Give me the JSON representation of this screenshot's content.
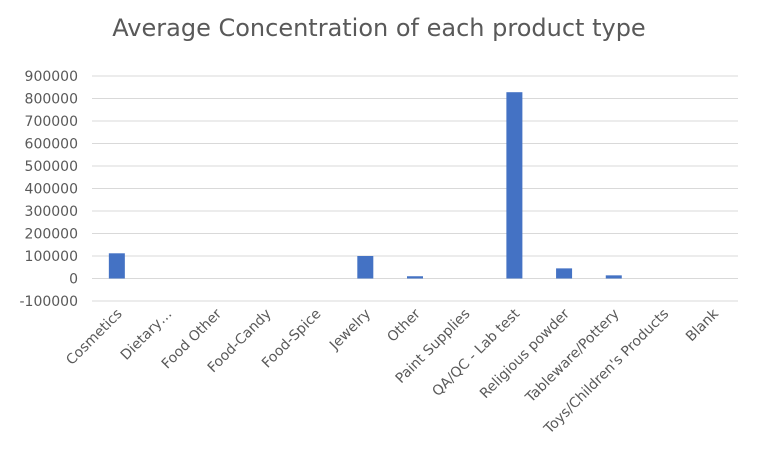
{
  "chart_data": {
    "type": "bar",
    "title": "Average Concentration of each product type",
    "xlabel": "",
    "ylabel": "",
    "ylim": [
      -100000,
      900000
    ],
    "yticks": [
      -100000,
      0,
      100000,
      200000,
      300000,
      400000,
      500000,
      600000,
      700000,
      800000,
      900000
    ],
    "grid": true,
    "legend": "none",
    "categories": [
      "Cosmetics",
      "Dietary…",
      "Food Other",
      "Food-Candy",
      "Food-Spice",
      "Jewelry",
      "Other",
      "Paint Supplies",
      "QA/QC - Lab test",
      "Religious powder",
      "Tableware/Pottery",
      "Toys/Children's Products",
      "Blank"
    ],
    "values": [
      112000,
      0,
      0,
      0,
      0,
      100000,
      10000,
      0,
      828000,
      45000,
      14000,
      0,
      0
    ],
    "colors": {
      "bar": "#4472C4",
      "grid": "#d9d9d9",
      "text": "#595959"
    }
  }
}
